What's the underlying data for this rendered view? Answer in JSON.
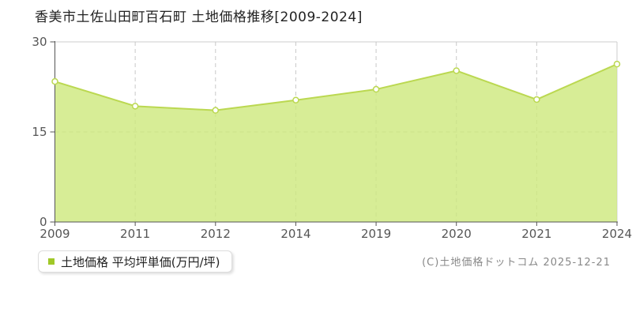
{
  "title": "香美市土佐山田町百石町 土地価格推移[2009-2024]",
  "legend": {
    "label": "土地価格 平均坪単価(万円/坪)",
    "marker_color": "#a0c828"
  },
  "footer": {
    "copyright": "(C)土地価格ドットコム 2025-12-21"
  },
  "chart_data": {
    "type": "area",
    "title": "香美市土佐山田町百石町 土地価格推移[2009-2024]",
    "categories": [
      "2009",
      "2011",
      "2012",
      "2014",
      "2019",
      "2020",
      "2021",
      "2024"
    ],
    "series": [
      {
        "name": "土地価格 平均坪単価(万円/坪)",
        "values": [
          23.4,
          19.3,
          18.6,
          20.3,
          22.1,
          25.2,
          20.4,
          26.3
        ]
      }
    ],
    "unit": "万円/坪",
    "xlabel": "",
    "ylabel": "",
    "ylim": [
      0,
      30
    ],
    "yticks": [
      0,
      15,
      30
    ],
    "grid": true,
    "legend_position": "bottom-left",
    "colors": {
      "line": "#bbd851",
      "fill": "#cde97c",
      "fill_opacity": 0.8,
      "marker_fill": "#ffffff",
      "axis": "#555555",
      "grid": "#c8c8c8",
      "border": "#cccccc",
      "tick_label": "#555555"
    }
  }
}
